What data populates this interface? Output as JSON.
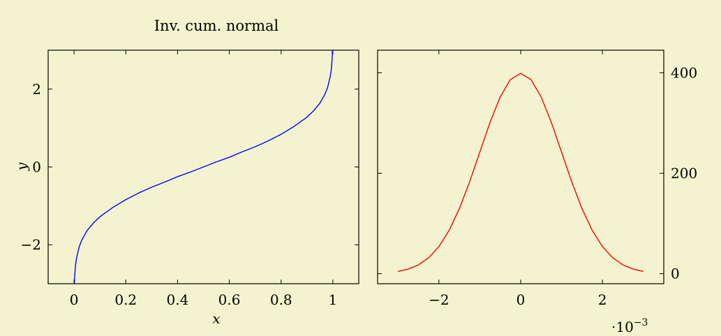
{
  "colors": {
    "background": "#f3f4cf",
    "left_curve": "#0000ff",
    "right_curve": "#ff0000"
  },
  "chart_data": [
    {
      "type": "line",
      "title": "Inv. cum. normal",
      "xlabel": "x",
      "ylabel": "y",
      "xlim": [
        -0.1,
        1.1
      ],
      "ylim": [
        -3,
        3
      ],
      "xticks": [
        0,
        0.2,
        0.4,
        0.6,
        0.8,
        1
      ],
      "xtick_labels": [
        "0",
        "0.2",
        "0.4",
        "0.6",
        "0.8",
        "1"
      ],
      "yticks": [
        -2,
        0,
        2
      ],
      "ytick_labels": [
        "−2",
        "0",
        "2"
      ],
      "grid": false,
      "series": [
        {
          "color": "#0000ff",
          "x": [
            0.0013,
            0.003,
            0.006,
            0.01,
            0.02,
            0.03,
            0.05,
            0.075,
            0.1,
            0.15,
            0.2,
            0.25,
            0.3,
            0.35,
            0.4,
            0.45,
            0.5,
            0.55,
            0.6,
            0.65,
            0.7,
            0.75,
            0.8,
            0.85,
            0.9,
            0.925,
            0.95,
            0.97,
            0.98,
            0.99,
            0.994,
            0.997,
            0.9987
          ],
          "y": [
            -3.0,
            -2.75,
            -2.51,
            -2.33,
            -2.05,
            -1.88,
            -1.64,
            -1.44,
            -1.28,
            -1.04,
            -0.84,
            -0.67,
            -0.52,
            -0.39,
            -0.25,
            -0.13,
            0.0,
            0.13,
            0.25,
            0.39,
            0.52,
            0.67,
            0.84,
            1.04,
            1.28,
            1.44,
            1.64,
            1.88,
            2.05,
            2.33,
            2.51,
            2.75,
            3.0
          ]
        }
      ]
    },
    {
      "type": "line",
      "title": "",
      "xlabel": "",
      "ylabel": "",
      "x_scale_label": "·10",
      "x_scale_exponent": "−3",
      "xlim": [
        -3.5,
        3.5
      ],
      "ylim": [
        -20,
        445
      ],
      "xticks": [
        -2,
        0,
        2
      ],
      "xtick_labels": [
        "−2",
        "0",
        "2"
      ],
      "yticks": [
        0,
        200,
        400
      ],
      "ytick_labels": [
        "0",
        "200",
        "400"
      ],
      "y_axis_side": "right",
      "grid": false,
      "series": [
        {
          "color": "#ff0000",
          "x": [
            -3,
            -2.75,
            -2.5,
            -2.25,
            -2,
            -1.75,
            -1.5,
            -1.25,
            -1,
            -0.75,
            -0.5,
            -0.25,
            0,
            0.25,
            0.5,
            0.75,
            1,
            1.25,
            1.5,
            1.75,
            2,
            2.25,
            2.5,
            2.75,
            3
          ],
          "y": [
            4.4,
            9.1,
            17.5,
            31.7,
            54.0,
            86.3,
            129.5,
            182.6,
            242.0,
            301.2,
            352.1,
            386.7,
            398.9,
            386.7,
            352.1,
            301.2,
            242.0,
            182.6,
            129.5,
            86.3,
            54.0,
            31.7,
            17.5,
            9.1,
            4.4
          ]
        }
      ]
    }
  ]
}
